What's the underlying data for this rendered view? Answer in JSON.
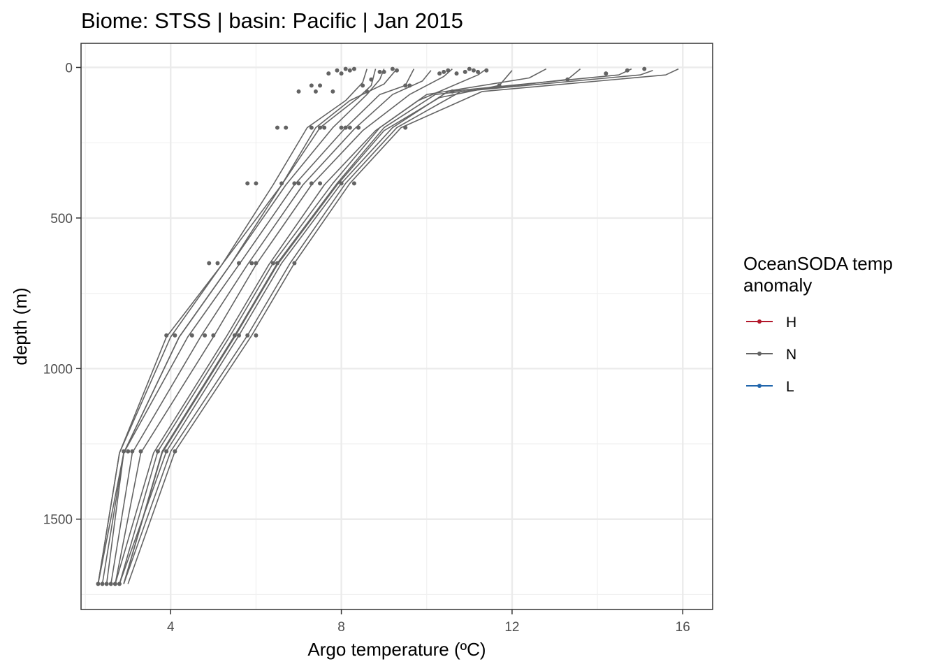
{
  "chart_data": {
    "type": "line",
    "title": "Biome: STSS | basin: Pacific  | Jan 2015",
    "xlabel": "Argo temperature (ºC)",
    "ylabel": "depth (m)",
    "xlim": [
      1.9,
      16.7
    ],
    "ylim": [
      1800,
      -80
    ],
    "x_ticks": [
      4,
      8,
      12,
      16
    ],
    "y_ticks": [
      0,
      500,
      1000,
      1500
    ],
    "grid": true,
    "legend": {
      "title_lines": [
        "OceanSODA temp",
        "anomaly"
      ],
      "position": "right",
      "entries": [
        {
          "label": "H",
          "color": "#b2182b"
        },
        {
          "label": "N",
          "color": "#636363"
        },
        {
          "label": "L",
          "color": "#2166ac"
        }
      ]
    },
    "series": [
      {
        "group": "N",
        "points": [
          [
            15.9,
            5
          ],
          [
            15.6,
            25
          ],
          [
            11.3,
            80
          ],
          [
            9.4,
            200
          ],
          [
            8.2,
            385
          ],
          [
            6.9,
            650
          ],
          [
            5.9,
            890
          ],
          [
            4.1,
            1275
          ],
          [
            3.0,
            1715
          ]
        ]
      },
      {
        "group": "N",
        "points": [
          [
            15.3,
            10
          ],
          [
            15.0,
            25
          ],
          [
            10.8,
            80
          ],
          [
            9.3,
            200
          ],
          [
            8.1,
            385
          ],
          [
            6.8,
            650
          ],
          [
            5.8,
            890
          ],
          [
            4.0,
            1275
          ],
          [
            2.9,
            1715
          ]
        ]
      },
      {
        "group": "N",
        "points": [
          [
            14.8,
            5
          ],
          [
            14.5,
            25
          ],
          [
            10.5,
            80
          ],
          [
            9.2,
            200
          ],
          [
            8.0,
            385
          ],
          [
            6.6,
            650
          ],
          [
            5.6,
            890
          ],
          [
            3.9,
            1275
          ],
          [
            2.8,
            1715
          ]
        ]
      },
      {
        "group": "N",
        "points": [
          [
            13.6,
            5
          ],
          [
            13.3,
            40
          ],
          [
            10.2,
            90
          ],
          [
            9.0,
            200
          ],
          [
            7.9,
            385
          ],
          [
            6.5,
            650
          ],
          [
            5.5,
            890
          ],
          [
            3.8,
            1275
          ],
          [
            2.9,
            1715
          ]
        ]
      },
      {
        "group": "N",
        "points": [
          [
            12.8,
            5
          ],
          [
            12.4,
            35
          ],
          [
            10.0,
            90
          ],
          [
            8.9,
            200
          ],
          [
            7.8,
            385
          ],
          [
            6.4,
            650
          ],
          [
            5.4,
            890
          ],
          [
            3.7,
            1275
          ],
          [
            2.8,
            1715
          ]
        ]
      },
      {
        "group": "N",
        "points": [
          [
            12.0,
            10
          ],
          [
            11.7,
            60
          ],
          [
            10.3,
            100
          ],
          [
            9.0,
            210
          ],
          [
            7.9,
            390
          ],
          [
            6.5,
            655
          ],
          [
            5.5,
            895
          ],
          [
            3.8,
            1280
          ],
          [
            2.9,
            1715
          ]
        ]
      },
      {
        "group": "N",
        "points": [
          [
            11.4,
            5
          ],
          [
            11.2,
            25
          ],
          [
            9.8,
            110
          ],
          [
            8.8,
            210
          ],
          [
            7.6,
            390
          ],
          [
            6.3,
            655
          ],
          [
            5.3,
            895
          ],
          [
            3.6,
            1280
          ],
          [
            2.7,
            1715
          ]
        ]
      },
      {
        "group": "N",
        "points": [
          [
            10.6,
            5
          ],
          [
            10.4,
            30
          ],
          [
            9.6,
            90
          ],
          [
            8.5,
            210
          ],
          [
            7.3,
            390
          ],
          [
            6.0,
            655
          ],
          [
            5.0,
            895
          ],
          [
            3.3,
            1280
          ],
          [
            2.7,
            1715
          ]
        ]
      },
      {
        "group": "N",
        "points": [
          [
            10.1,
            10
          ],
          [
            9.9,
            45
          ],
          [
            9.2,
            90
          ],
          [
            8.3,
            205
          ],
          [
            7.1,
            390
          ],
          [
            5.8,
            655
          ],
          [
            4.7,
            895
          ],
          [
            3.1,
            1280
          ],
          [
            2.6,
            1715
          ]
        ]
      },
      {
        "group": "N",
        "points": [
          [
            9.7,
            5
          ],
          [
            9.5,
            60
          ],
          [
            8.9,
            90
          ],
          [
            8.1,
            200
          ],
          [
            6.9,
            390
          ],
          [
            5.6,
            655
          ],
          [
            4.4,
            895
          ],
          [
            2.9,
            1280
          ],
          [
            2.5,
            1715
          ]
        ]
      },
      {
        "group": "N",
        "points": [
          [
            9.0,
            5
          ],
          [
            8.9,
            40
          ],
          [
            8.6,
            90
          ],
          [
            7.8,
            200
          ],
          [
            6.7,
            390
          ],
          [
            5.4,
            655
          ],
          [
            4.2,
            895
          ],
          [
            2.9,
            1280
          ],
          [
            2.4,
            1715
          ]
        ]
      },
      {
        "group": "N",
        "points": [
          [
            8.8,
            5
          ],
          [
            8.7,
            60
          ],
          [
            8.4,
            100
          ],
          [
            7.5,
            200
          ],
          [
            6.6,
            390
          ],
          [
            5.2,
            655
          ],
          [
            4.0,
            895
          ],
          [
            2.8,
            1280
          ],
          [
            2.3,
            1715
          ]
        ]
      },
      {
        "group": "N",
        "points": [
          [
            9.3,
            5
          ],
          [
            9.0,
            55
          ],
          [
            8.2,
            110
          ],
          [
            7.4,
            200
          ],
          [
            6.6,
            390
          ],
          [
            5.4,
            655
          ],
          [
            4.2,
            895
          ],
          [
            2.9,
            1280
          ],
          [
            2.3,
            1715
          ]
        ]
      },
      {
        "group": "N",
        "points": [
          [
            8.6,
            5
          ],
          [
            8.5,
            50
          ],
          [
            8.1,
            110
          ],
          [
            7.2,
            200
          ],
          [
            6.4,
            390
          ],
          [
            5.2,
            655
          ],
          [
            3.9,
            895
          ],
          [
            2.8,
            1280
          ],
          [
            2.3,
            1715
          ]
        ]
      }
    ],
    "points": [
      [
        15.1,
        5
      ],
      [
        14.7,
        10
      ],
      [
        14.2,
        20
      ],
      [
        13.3,
        40
      ],
      [
        11.7,
        60
      ],
      [
        11.4,
        10
      ],
      [
        11.2,
        15
      ],
      [
        11.1,
        10
      ],
      [
        11.0,
        5
      ],
      [
        10.9,
        15
      ],
      [
        10.7,
        20
      ],
      [
        10.5,
        10
      ],
      [
        10.4,
        15
      ],
      [
        10.3,
        20
      ],
      [
        10.6,
        80
      ],
      [
        9.6,
        60
      ],
      [
        9.5,
        60
      ],
      [
        9.3,
        10
      ],
      [
        9.2,
        5
      ],
      [
        9.0,
        15
      ],
      [
        8.9,
        15
      ],
      [
        8.7,
        40
      ],
      [
        8.6,
        80
      ],
      [
        8.5,
        60
      ],
      [
        8.3,
        5
      ],
      [
        8.2,
        10
      ],
      [
        8.1,
        5
      ],
      [
        8.0,
        20
      ],
      [
        7.9,
        10
      ],
      [
        7.7,
        20
      ],
      [
        7.5,
        60
      ],
      [
        7.8,
        80
      ],
      [
        7.4,
        80
      ],
      [
        7.3,
        60
      ],
      [
        7.0,
        80
      ],
      [
        8.4,
        200
      ],
      [
        8.2,
        200
      ],
      [
        8.1,
        200
      ],
      [
        8.0,
        200
      ],
      [
        7.6,
        200
      ],
      [
        7.5,
        200
      ],
      [
        7.3,
        200
      ],
      [
        6.7,
        200
      ],
      [
        6.5,
        200
      ],
      [
        9.5,
        200
      ],
      [
        8.3,
        385
      ],
      [
        8.0,
        385
      ],
      [
        7.5,
        385
      ],
      [
        7.3,
        385
      ],
      [
        7.0,
        385
      ],
      [
        6.9,
        385
      ],
      [
        6.6,
        385
      ],
      [
        6.0,
        385
      ],
      [
        5.8,
        385
      ],
      [
        6.9,
        650
      ],
      [
        6.5,
        650
      ],
      [
        6.4,
        650
      ],
      [
        6.0,
        650
      ],
      [
        5.9,
        650
      ],
      [
        5.6,
        650
      ],
      [
        5.1,
        650
      ],
      [
        4.9,
        650
      ],
      [
        6.0,
        890
      ],
      [
        5.8,
        890
      ],
      [
        5.6,
        890
      ],
      [
        5.5,
        890
      ],
      [
        5.0,
        890
      ],
      [
        4.8,
        890
      ],
      [
        4.5,
        890
      ],
      [
        4.1,
        890
      ],
      [
        3.9,
        890
      ],
      [
        4.1,
        1275
      ],
      [
        3.9,
        1275
      ],
      [
        3.7,
        1275
      ],
      [
        3.3,
        1275
      ],
      [
        3.1,
        1275
      ],
      [
        3.0,
        1275
      ],
      [
        2.9,
        1275
      ],
      [
        2.8,
        1715
      ],
      [
        2.7,
        1715
      ],
      [
        2.6,
        1715
      ],
      [
        2.5,
        1715
      ],
      [
        2.4,
        1715
      ],
      [
        2.3,
        1715
      ]
    ]
  }
}
